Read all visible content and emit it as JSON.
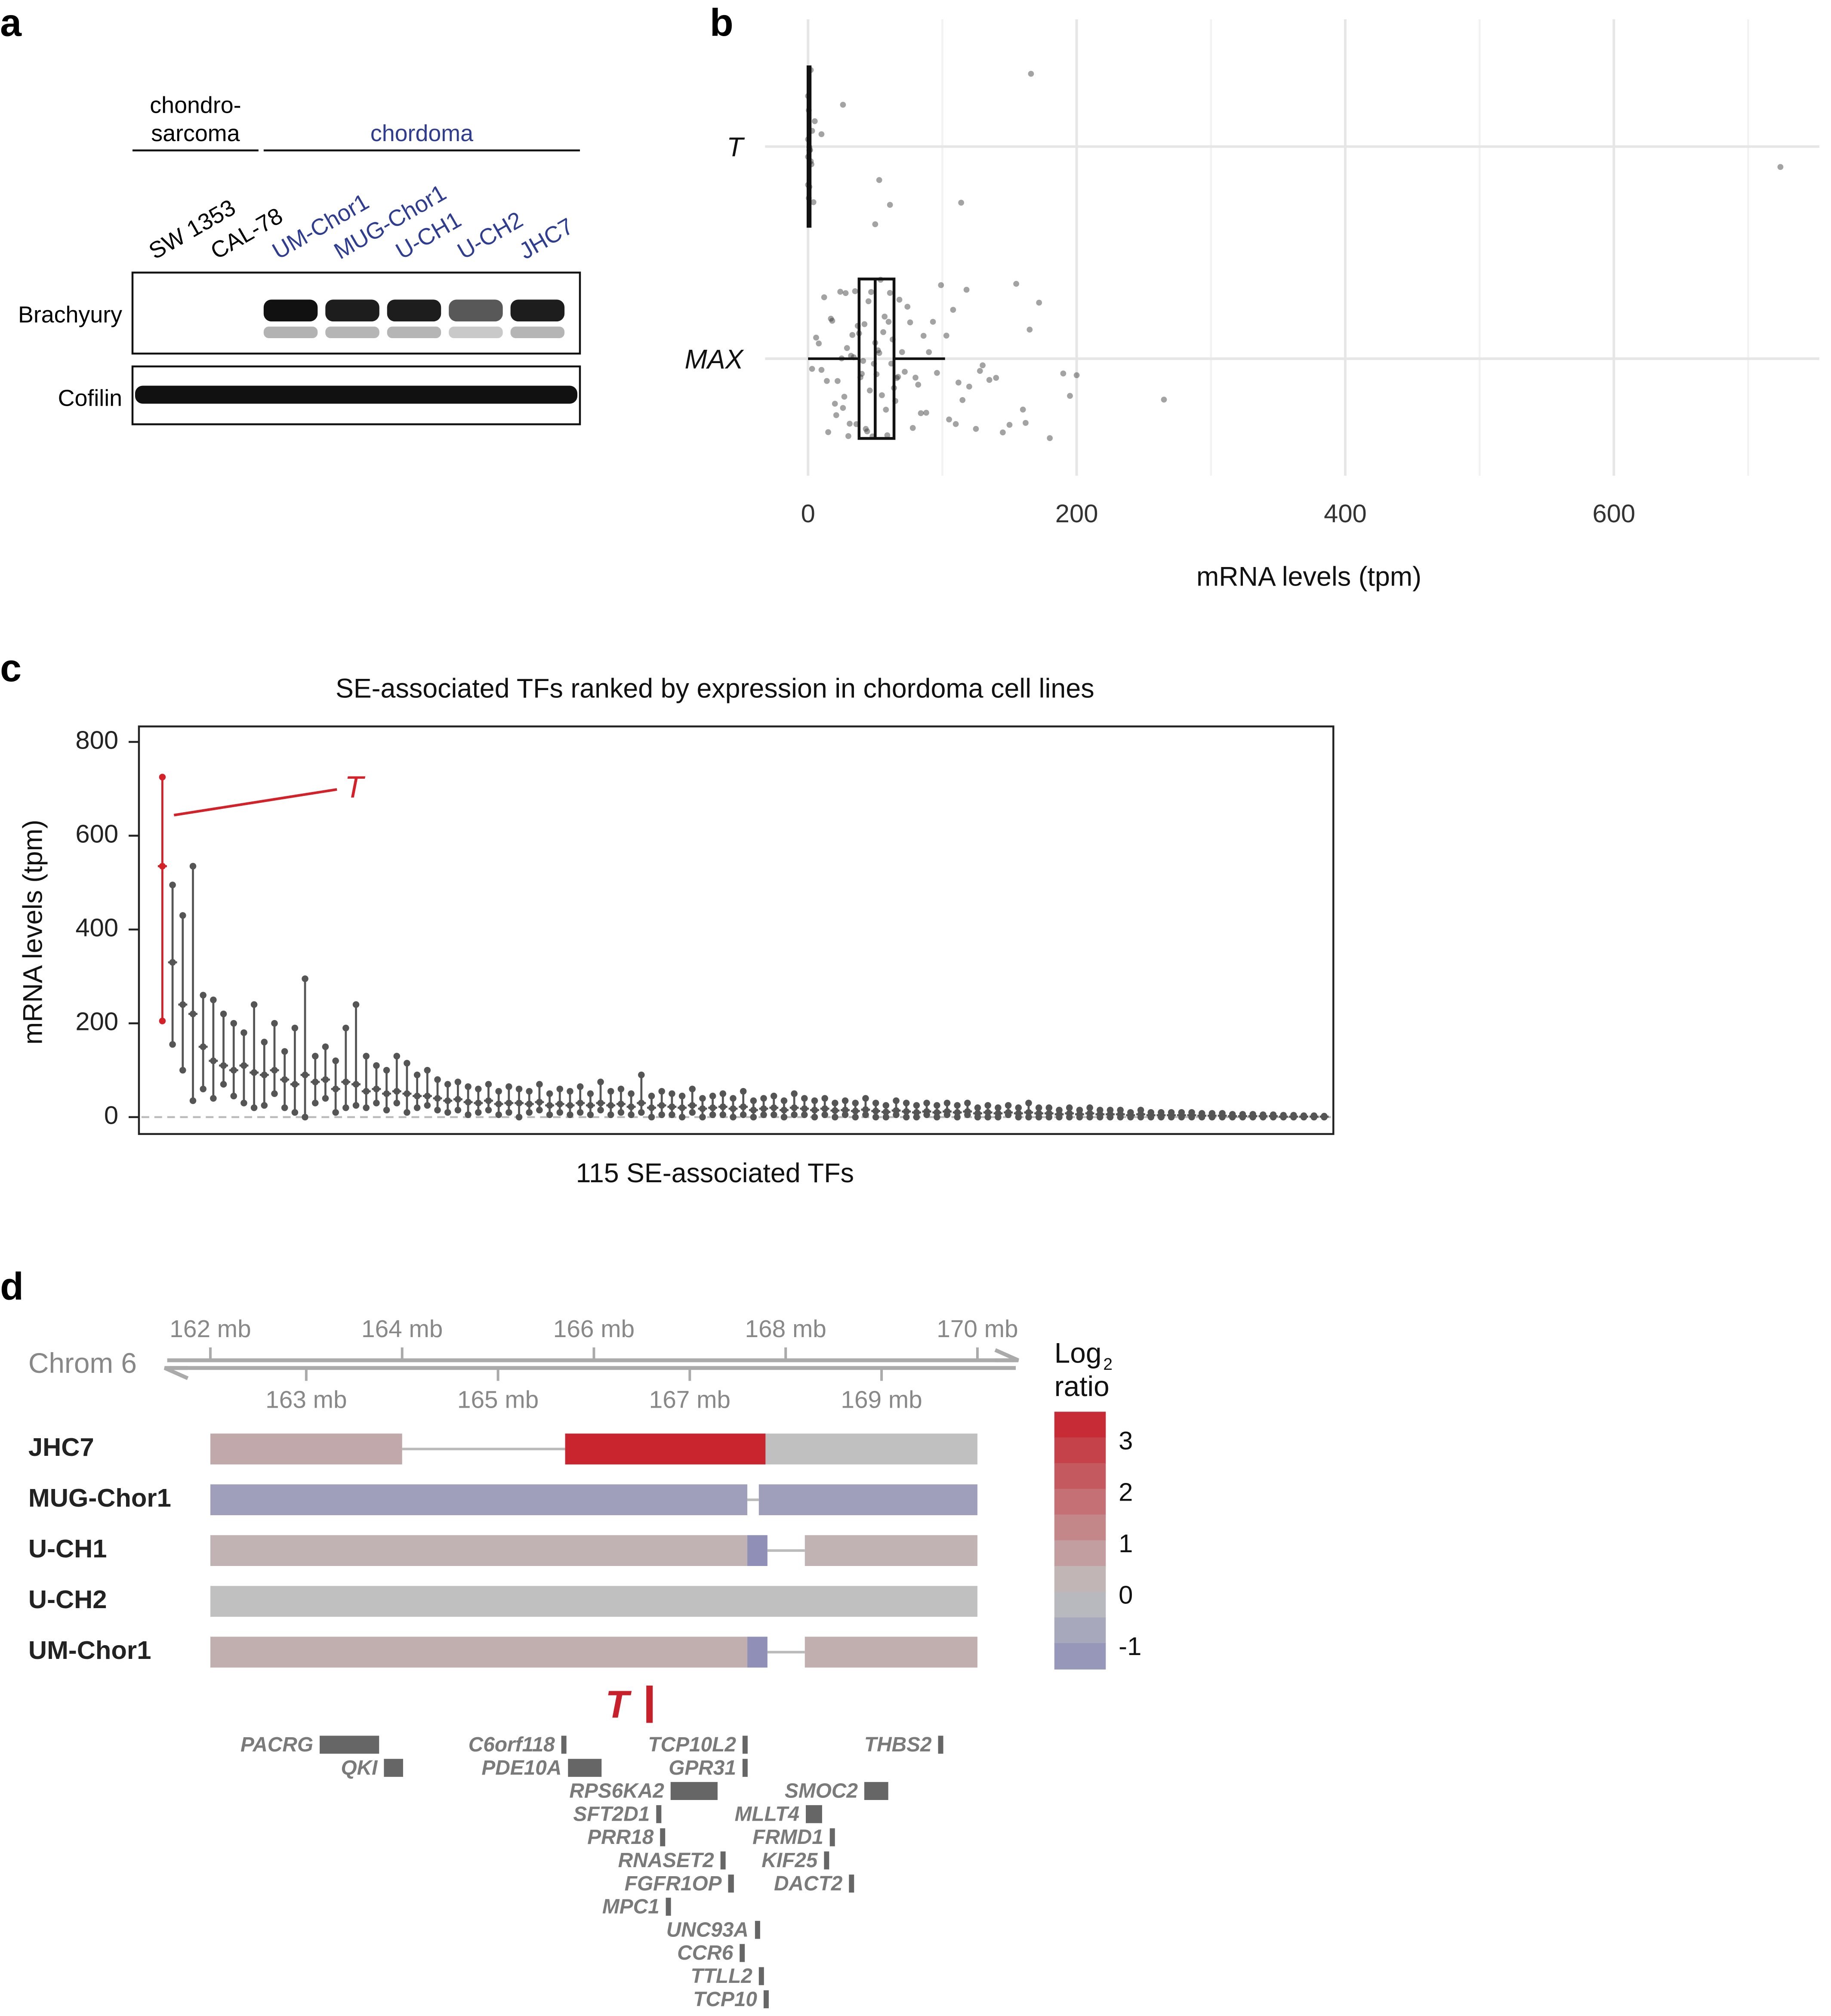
{
  "panel_labels": [
    "a",
    "b",
    "c",
    "d"
  ],
  "panel_a": {
    "groups": [
      {
        "label": [
          "chondro-",
          "sarcoma"
        ],
        "color": "#000000",
        "lanes": [
          "SW 1353",
          "CAL-78"
        ]
      },
      {
        "label": [
          "chordoma"
        ],
        "color": "#2e3c91",
        "lanes": [
          "UM-Chor1",
          "MUG-Chor1",
          "U-CH1",
          "U-CH2",
          "JHC7"
        ]
      }
    ],
    "blots": [
      "Brachyury",
      "Cofilin"
    ]
  },
  "chart_data": [
    {
      "type": "box",
      "categories": [
        "T",
        "MAX"
      ],
      "xlabel": "mRNA levels (tpm)",
      "xlim": [
        -32,
        753
      ],
      "xticks": [
        0,
        200,
        400,
        600
      ],
      "xgrid_minor": [
        100,
        300,
        500,
        700
      ],
      "grid": true,
      "point_color": "#333333",
      "boxes": [
        {
          "whislo": 0,
          "q1": 0,
          "median": 0.5,
          "q3": 1.5,
          "whishi": 2,
          "points": [
            0,
            0,
            0,
            0,
            0.5,
            0.5,
            1,
            1,
            1,
            1.5,
            2,
            2,
            2.5,
            3,
            4,
            5,
            10,
            26,
            50,
            53,
            61,
            114,
            166,
            724
          ]
        },
        {
          "whislo": 0,
          "q1": 38,
          "median": 50,
          "q3": 64,
          "whishi": 102,
          "points": [
            3,
            6,
            8,
            10,
            12,
            14,
            15,
            17,
            18,
            20,
            21,
            22,
            24,
            25,
            26,
            27,
            28,
            29,
            30,
            31,
            32,
            33,
            34,
            35,
            36,
            37,
            38,
            39,
            40,
            41,
            42,
            43,
            44,
            45,
            46,
            47,
            48,
            49,
            50,
            51,
            52,
            53,
            54,
            55,
            56,
            57,
            58,
            59,
            60,
            61,
            62,
            63,
            64,
            65,
            66,
            67,
            68,
            70,
            72,
            74,
            76,
            78,
            80,
            82,
            84,
            86,
            88,
            90,
            93,
            96,
            99,
            103,
            105,
            108,
            110,
            112,
            115,
            118,
            120,
            125,
            128,
            130,
            135,
            140,
            145,
            150,
            155,
            160,
            162,
            165,
            172,
            180,
            190,
            195,
            200,
            265
          ]
        }
      ]
    },
    {
      "type": "range",
      "title": "SE-associated TFs ranked by expression in chordoma cell lines",
      "xlabel": "115 SE-associated TFs",
      "ylabel": "mRNA levels (tpm)",
      "xlim": [
        -1.3,
        115.9
      ],
      "ylim": [
        -36,
        833
      ],
      "yticks": [
        0,
        200,
        400,
        600,
        800
      ],
      "zero_line": true,
      "series": [
        {
          "name": "T",
          "color": "#d62027",
          "x": [
            1
          ],
          "min": [
            205
          ],
          "median": [
            535
          ],
          "max": [
            725
          ]
        },
        {
          "color": "#555555",
          "x": [
            2,
            3,
            4,
            5,
            6,
            7,
            8,
            9,
            10,
            11,
            12,
            13,
            14,
            15,
            16,
            17,
            18,
            19,
            20,
            21,
            22,
            23,
            24,
            25,
            26,
            27,
            28,
            29,
            30,
            31,
            32,
            33,
            34,
            35,
            36,
            37,
            38,
            39,
            40,
            41,
            42,
            43,
            44,
            45,
            46,
            47,
            48,
            49,
            50,
            51,
            52,
            53,
            54,
            55,
            56,
            57,
            58,
            59,
            60,
            61,
            62,
            63,
            64,
            65,
            66,
            67,
            68,
            69,
            70,
            71,
            72,
            73,
            74,
            75,
            76,
            77,
            78,
            79,
            80,
            81,
            82,
            83,
            84,
            85,
            86,
            87,
            88,
            89,
            90,
            91,
            92,
            93,
            94,
            95,
            96,
            97,
            98,
            99,
            100,
            101,
            102,
            103,
            104,
            105,
            106,
            107,
            108,
            109,
            110,
            111,
            112,
            113,
            114,
            115
          ],
          "min": [
            155,
            100,
            35,
            60,
            40,
            70,
            45,
            30,
            20,
            25,
            50,
            20,
            10,
            0,
            30,
            40,
            10,
            20,
            25,
            20,
            30,
            15,
            30,
            10,
            20,
            25,
            15,
            10,
            15,
            5,
            10,
            15,
            5,
            10,
            0,
            10,
            15,
            5,
            10,
            5,
            10,
            5,
            15,
            5,
            10,
            5,
            10,
            0,
            5,
            5,
            0,
            10,
            0,
            5,
            5,
            0,
            5,
            0,
            5,
            5,
            0,
            5,
            5,
            0,
            5,
            0,
            5,
            0,
            5,
            0,
            0,
            5,
            0,
            0,
            5,
            0,
            5,
            0,
            5,
            0,
            0,
            0,
            5,
            0,
            0,
            0,
            0,
            0,
            0,
            0,
            0,
            0,
            0,
            0,
            0,
            0,
            0,
            0,
            0,
            0,
            0,
            0,
            0,
            0,
            0,
            0,
            0,
            0,
            0,
            0,
            0,
            0,
            0,
            0
          ],
          "median": [
            330,
            240,
            220,
            150,
            120,
            110,
            100,
            110,
            95,
            90,
            100,
            80,
            70,
            90,
            75,
            80,
            60,
            75,
            70,
            55,
            60,
            50,
            55,
            50,
            45,
            45,
            40,
            35,
            38,
            32,
            30,
            35,
            28,
            30,
            30,
            28,
            32,
            25,
            28,
            25,
            30,
            25,
            30,
            25,
            28,
            22,
            30,
            20,
            25,
            22,
            20,
            25,
            18,
            20,
            22,
            18,
            22,
            15,
            18,
            20,
            15,
            20,
            18,
            15,
            18,
            14,
            15,
            13,
            16,
            13,
            11,
            14,
            12,
            10,
            12,
            10,
            12,
            10,
            12,
            8,
            10,
            8,
            10,
            8,
            10,
            8,
            8,
            6,
            8,
            6,
            8,
            6,
            6,
            6,
            4,
            6,
            4,
            4,
            4,
            4,
            4,
            3,
            3,
            3,
            2,
            2,
            2,
            2,
            2,
            1,
            1,
            1,
            1,
            1
          ],
          "max": [
            495,
            430,
            535,
            260,
            250,
            220,
            200,
            180,
            240,
            160,
            200,
            140,
            190,
            295,
            130,
            150,
            120,
            190,
            240,
            130,
            110,
            100,
            130,
            115,
            90,
            100,
            80,
            70,
            75,
            65,
            60,
            70,
            55,
            65,
            60,
            55,
            70,
            50,
            60,
            55,
            65,
            50,
            75,
            55,
            60,
            50,
            90,
            45,
            55,
            50,
            45,
            60,
            40,
            45,
            50,
            40,
            55,
            35,
            40,
            45,
            35,
            50,
            40,
            35,
            40,
            30,
            35,
            30,
            40,
            30,
            25,
            35,
            30,
            25,
            30,
            25,
            30,
            25,
            30,
            20,
            25,
            20,
            25,
            20,
            30,
            20,
            20,
            15,
            20,
            15,
            20,
            15,
            15,
            15,
            10,
            15,
            10,
            10,
            10,
            10,
            10,
            8,
            8,
            8,
            6,
            6,
            6,
            5,
            5,
            4,
            4,
            3,
            3,
            2
          ]
        }
      ]
    }
  ],
  "panel_d": {
    "axis_label": "Chrom 6",
    "xlim": [
      161.55,
      170.4
    ],
    "top_ticks": [
      {
        "value": 162,
        "label": "162 mb"
      },
      {
        "value": 164,
        "label": "164 mb"
      },
      {
        "value": 166,
        "label": "166 mb"
      },
      {
        "value": 168,
        "label": "168 mb"
      },
      {
        "value": 170,
        "label": "170 mb"
      }
    ],
    "bottom_ticks": [
      {
        "value": 163,
        "label": "163 mb"
      },
      {
        "value": 165,
        "label": "165 mb"
      },
      {
        "value": 167,
        "label": "167 mb"
      },
      {
        "value": 169,
        "label": "169 mb"
      }
    ],
    "samples": [
      {
        "name": "JHC7",
        "segments": [
          {
            "start": 162,
            "end": 164,
            "log2": 0.5
          },
          {
            "start": 165.7,
            "end": 167.79,
            "log2": 3.4
          },
          {
            "start": 167.79,
            "end": 170,
            "log2": 0
          }
        ]
      },
      {
        "name": "MUG-Chor1",
        "segments": [
          {
            "start": 162,
            "end": 167.6,
            "log2": -1
          },
          {
            "start": 167.72,
            "end": 170,
            "log2": -1
          }
        ]
      },
      {
        "name": "U-CH1",
        "segments": [
          {
            "start": 162,
            "end": 167.6,
            "log2": 0.3
          },
          {
            "start": 167.6,
            "end": 167.81,
            "log2": -1.5
          },
          {
            "start": 168.2,
            "end": 170,
            "log2": 0.3
          }
        ]
      },
      {
        "name": "U-CH2",
        "segments": [
          {
            "start": 162,
            "end": 170,
            "log2": 0
          }
        ]
      },
      {
        "name": "UM-Chor1",
        "segments": [
          {
            "start": 162,
            "end": 167.6,
            "log2": 0.4
          },
          {
            "start": 167.6,
            "end": 167.81,
            "log2": -1.5
          },
          {
            "start": 168.2,
            "end": 170,
            "log2": 0.4
          }
        ]
      }
    ],
    "colorscale": [
      {
        "value": -1.5,
        "color": "#8f8fb8"
      },
      {
        "value": 0,
        "color": "#c0c0c0"
      },
      {
        "value": 3.5,
        "color": "#c8202a"
      }
    ],
    "legend": {
      "title": [
        "Log",
        "2",
        "ratio"
      ],
      "ticks": [
        3,
        2,
        1,
        0,
        -1
      ],
      "bins": [
        3.5,
        3,
        2.5,
        2,
        1.5,
        1,
        0.5,
        0,
        -0.5,
        -1,
        -1.5
      ]
    },
    "highlight_gene": {
      "name": "T",
      "position": 166.58,
      "color": "#c8202a"
    },
    "gene_color": "#666666",
    "genes": [
      {
        "name": "PACRG",
        "start": 163.14,
        "end": 163.76
      },
      {
        "name": "QKI",
        "start": 163.81,
        "end": 164.01
      },
      {
        "name": "C6orf118",
        "start": 165.66,
        "end": 165.71
      },
      {
        "name": "PDE10A",
        "start": 165.73,
        "end": 166.08
      },
      {
        "name": "TCP10L2",
        "start": 167.55,
        "end": 167.59
      },
      {
        "name": "GPR31",
        "start": 167.55,
        "end": 167.59
      },
      {
        "name": "RPS6KA2",
        "start": 166.8,
        "end": 167.29
      },
      {
        "name": "SMOC2",
        "start": 168.82,
        "end": 169.07
      },
      {
        "name": "THBS2",
        "start": 169.59,
        "end": 169.64
      },
      {
        "name": "SFT2D1",
        "start": 166.65,
        "end": 166.69
      },
      {
        "name": "MLLT4",
        "start": 168.21,
        "end": 168.38
      },
      {
        "name": "PRR18",
        "start": 166.69,
        "end": 166.73
      },
      {
        "name": "FRMD1",
        "start": 168.46,
        "end": 168.5
      },
      {
        "name": "RNASET2",
        "start": 167.32,
        "end": 167.36
      },
      {
        "name": "KIF25",
        "start": 168.4,
        "end": 168.44
      },
      {
        "name": "FGFR1OP",
        "start": 167.4,
        "end": 167.46
      },
      {
        "name": "DACT2",
        "start": 168.66,
        "end": 168.7
      },
      {
        "name": "MPC1",
        "start": 166.75,
        "end": 166.79
      },
      {
        "name": "UNC93A",
        "start": 167.68,
        "end": 167.72
      },
      {
        "name": "CCR6",
        "start": 167.52,
        "end": 167.56
      },
      {
        "name": "TTLL2",
        "start": 167.72,
        "end": 167.76
      },
      {
        "name": "TCP10",
        "start": 167.77,
        "end": 167.81
      }
    ]
  }
}
